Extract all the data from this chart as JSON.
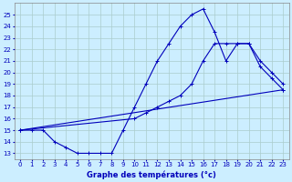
{
  "title": "Graphe des températures (°c)",
  "bg_color": "#cceeff",
  "grid_color": "#aacccc",
  "line_color": "#0000bb",
  "xlim": [
    -0.5,
    23.5
  ],
  "ylim": [
    12.5,
    26.0
  ],
  "xticks": [
    0,
    1,
    2,
    3,
    4,
    5,
    6,
    7,
    8,
    9,
    10,
    11,
    12,
    13,
    14,
    15,
    16,
    17,
    18,
    19,
    20,
    21,
    22,
    23
  ],
  "yticks": [
    13,
    14,
    15,
    16,
    17,
    18,
    19,
    20,
    21,
    22,
    23,
    24,
    25
  ],
  "series1_x": [
    0,
    1,
    2,
    3,
    4,
    5,
    6,
    7,
    8,
    9,
    10,
    11,
    12,
    13,
    14,
    15,
    16,
    17,
    18,
    19,
    20,
    21,
    22,
    23
  ],
  "series1_y": [
    15,
    15,
    15,
    14,
    13.5,
    13,
    13,
    13,
    13,
    15,
    17,
    19,
    21,
    22.5,
    24,
    25,
    25.5,
    23.5,
    21,
    22.5,
    22.5,
    20.5,
    19.5,
    18.5
  ],
  "series2_x": [
    0,
    23
  ],
  "series2_y": [
    15,
    18.5
  ],
  "series3_x": [
    0,
    10,
    11,
    12,
    13,
    14,
    15,
    16,
    17,
    18,
    19,
    20,
    21,
    22,
    23
  ],
  "series3_y": [
    15,
    16,
    16.5,
    17,
    17.5,
    18,
    19,
    21,
    22.5,
    22.5,
    22.5,
    22.5,
    21,
    20,
    19
  ],
  "marker": "+"
}
